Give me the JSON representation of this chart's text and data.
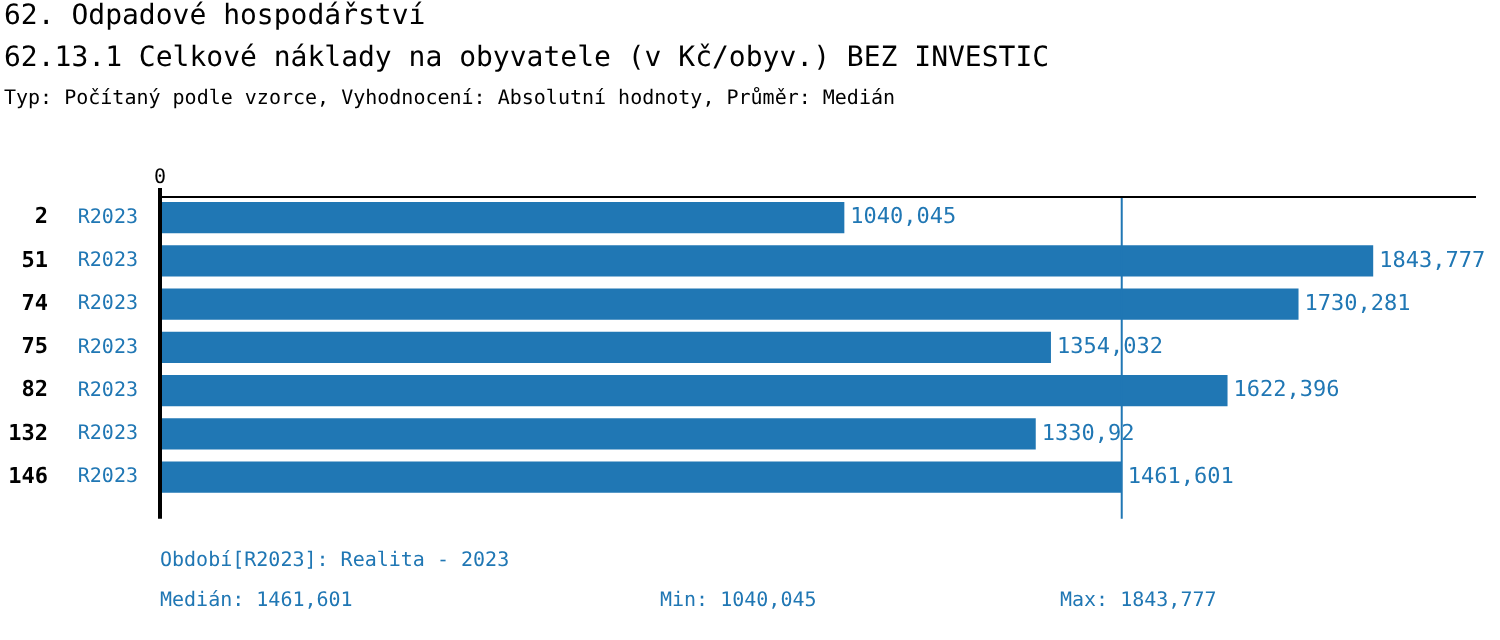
{
  "chart_data": {
    "type": "bar",
    "orientation": "horizontal",
    "title": "62. Odpadové hospodářství",
    "subtitle": "62.13.1 Celkové náklady na obyvatele (v Kč/obyv.) BEZ INVESTIC",
    "categories": [
      "2",
      "51",
      "74",
      "75",
      "82",
      "132",
      "146"
    ],
    "y2_categories": [
      "R2023",
      "R2023",
      "R2023",
      "R2023",
      "R2023",
      "R2023",
      "R2023"
    ],
    "values": [
      1040.045,
      1843.777,
      1730.281,
      1354.032,
      1622.396,
      1330.92,
      1461.601
    ],
    "value_labels": [
      "1040,045",
      "1843,777",
      "1730,281",
      "1354,032",
      "1622,396",
      "1330,92",
      "1461,601"
    ],
    "color": "#2077b4",
    "legend": false,
    "ref_lines": [
      {
        "axis": "x",
        "value": 1461.601,
        "color": "#2077b4"
      }
    ],
    "annotations": [
      "0",
      "Typ: Počítaný podle vzorce, Vyhodnocení: Absolutní hodnoty, Průměr: Medián",
      "Období[R2023]: Realita - 2023",
      "Medián: 1461,601",
      "Min: 1040,045",
      "Max: 1843,777"
    ]
  }
}
